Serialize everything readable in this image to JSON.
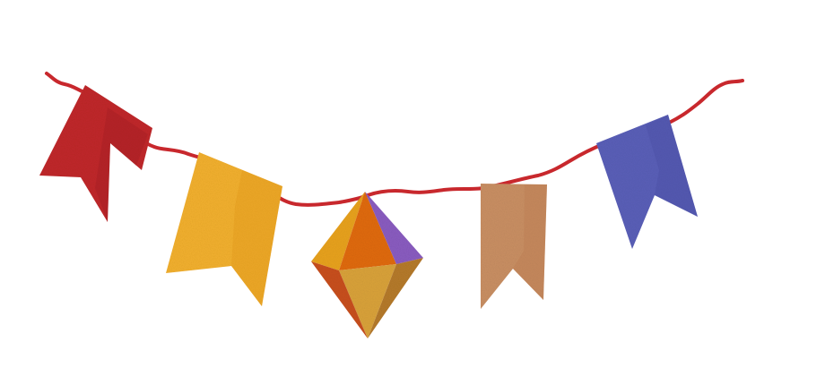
{
  "scene": {
    "background": "#ffffff",
    "string_color": "#c8282d",
    "flags": [
      {
        "name": "red-flag",
        "color": "#c0282a",
        "shade": "#9e1e22"
      },
      {
        "name": "yellow-flag",
        "color": "#f2b02e",
        "shade": "#e09418"
      },
      {
        "name": "tan-flag",
        "color": "#c98f63",
        "shade": "#b8774c"
      },
      {
        "name": "blue-flag",
        "color": "#5a5fb8",
        "shade": "#464aa0"
      }
    ],
    "lantern": {
      "colors": [
        "#e8a21e",
        "#e06a0c",
        "#8a5cc0",
        "#d9a23a",
        "#c84f1c",
        "#b57a2a"
      ]
    }
  }
}
